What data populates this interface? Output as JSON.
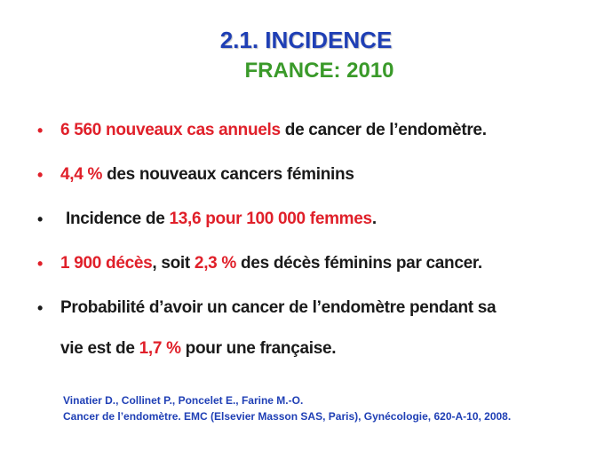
{
  "title": "2.1. INCIDENCE",
  "subtitle": "FRANCE: 2010",
  "bullets": [
    {
      "red_part": "6 560 nouveaux cas annuels",
      "text_part": " de cancer de l’endomètre."
    },
    {
      "red_part": "4,4 %",
      "text_part": " des nouveaux cancers féminins"
    },
    {
      "text_before": "Incidence de ",
      "red_part": "13,6 pour 100 000 femmes",
      "text_after": "."
    },
    {
      "red_part": "1 900 décès",
      "text_mid": ", soit ",
      "red_part2": "2,3 %",
      "text_after": " des décès féminins par cancer."
    },
    {
      "line1": "Probabilité d’avoir un cancer de l’endomètre pendant sa",
      "text_before": "vie est de ",
      "red_part": "1,7 %",
      "text_after": " pour une française."
    }
  ],
  "reference": {
    "authors": "Vinatier D., Collinet P., Poncelet E., Farine M.-O.",
    "citation": "Cancer de l’endomètre. EMC (Elsevier Masson SAS, Paris), Gynécologie, 620-A-10, 2008."
  },
  "colors": {
    "title": "#1f3fb5",
    "subtitle": "#3a9a2a",
    "highlight": "#e0202a",
    "reference": "#1f3fb5"
  }
}
